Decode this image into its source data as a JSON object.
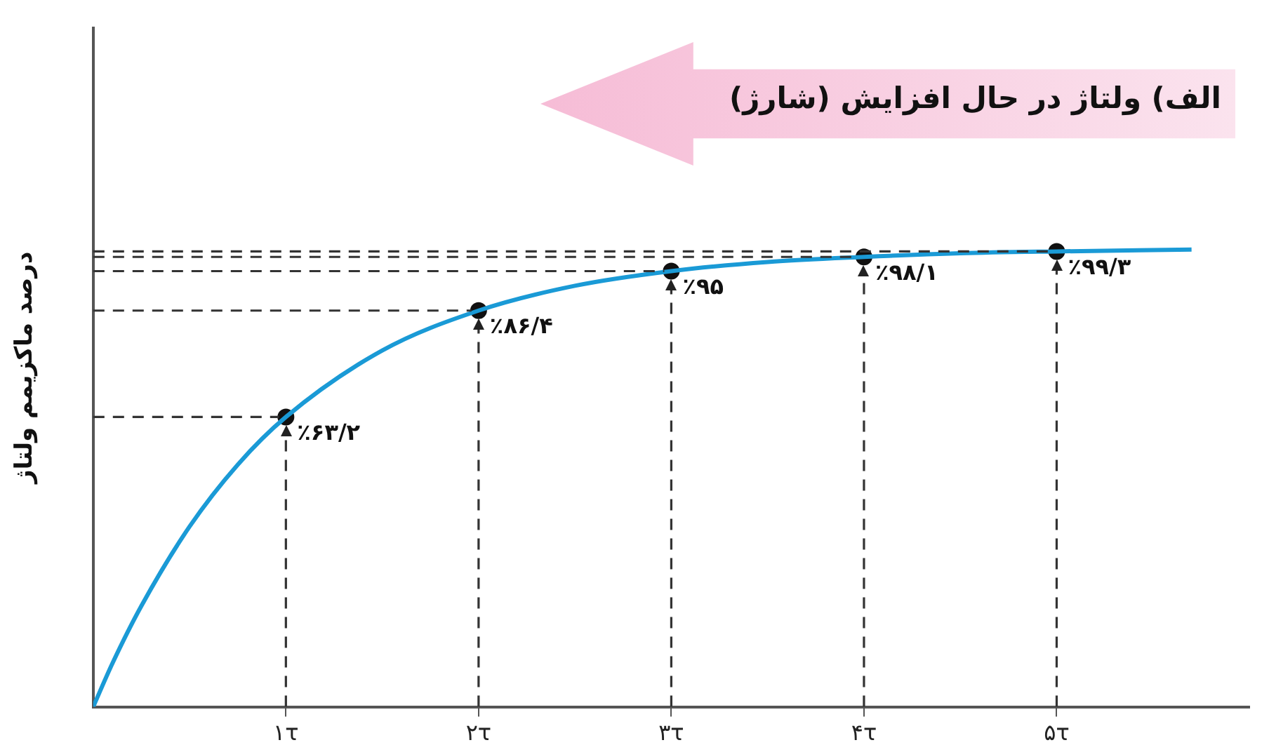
{
  "chart_data": {
    "type": "line",
    "title": "الف) ولتاژ در حال افزایش (شارژ)",
    "ylabel": "درصد ماکزیمم ولتاژ",
    "xlim": [
      0,
      6
    ],
    "xticks": [
      {
        "value": 1,
        "label": "۱τ"
      },
      {
        "value": 2,
        "label": "۲τ"
      },
      {
        "value": 3,
        "label": "۳τ"
      },
      {
        "value": 4,
        "label": "۴τ"
      },
      {
        "value": 5,
        "label": "۵τ"
      }
    ],
    "ylim": [
      0,
      148
    ],
    "ref_lines": [
      {
        "axis": "y",
        "value": 63.2,
        "color": "#333333",
        "line_style": "dashed"
      },
      {
        "axis": "y",
        "value": 86.4,
        "color": "#333333",
        "line_style": "dashed"
      },
      {
        "axis": "y",
        "value": 95,
        "color": "#333333",
        "line_style": "dashed"
      },
      {
        "axis": "y",
        "value": 98.1,
        "color": "#333333",
        "line_style": "dashed"
      },
      {
        "axis": "y",
        "value": 99.3,
        "color": "#333333",
        "line_style": "dashed"
      },
      {
        "axis": "x",
        "value": 1,
        "color": "#333333",
        "line_style": "dashed"
      },
      {
        "axis": "x",
        "value": 2,
        "color": "#333333",
        "line_style": "dashed"
      },
      {
        "axis": "x",
        "value": 3,
        "color": "#333333",
        "line_style": "dashed"
      },
      {
        "axis": "x",
        "value": 4,
        "color": "#333333",
        "line_style": "dashed"
      },
      {
        "axis": "x",
        "value": 5,
        "color": "#333333",
        "line_style": "dashed"
      }
    ],
    "tick_labels": "x",
    "grid": false,
    "legend": false,
    "series": [
      {
        "type": "line",
        "color": "#1a9ad6",
        "marker": "none",
        "line_style": "solid",
        "x": [
          0,
          0.1,
          0.25,
          0.5,
          0.75,
          1,
          1.5,
          2,
          2.5,
          3,
          3.5,
          4,
          4.5,
          5,
          5.7
        ],
        "values": [
          0,
          9.5,
          22,
          39.3,
          52.8,
          63.2,
          77.7,
          86.4,
          91.8,
          95,
          97,
          98.1,
          98.9,
          99.3,
          99.7
        ]
      },
      {
        "type": "scatter",
        "color": "#111111",
        "marker": "circle",
        "x": [
          1,
          2,
          3,
          4,
          5
        ],
        "values": [
          63.2,
          86.4,
          95,
          98.1,
          99.3
        ],
        "value_labels": [
          "٪۶۳/۲",
          "٪۸۶/۴",
          "٪۹۵",
          "٪۹۸/۱",
          "٪۹۹/۳"
        ]
      }
    ]
  }
}
